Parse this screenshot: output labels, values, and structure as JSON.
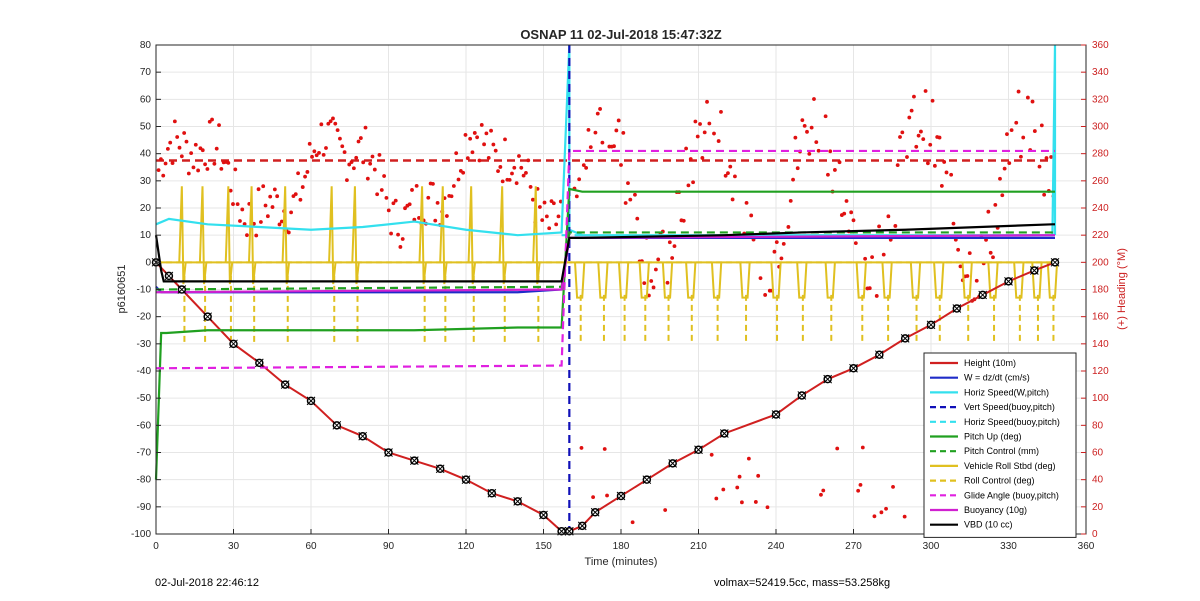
{
  "chart_data": {
    "type": "line",
    "title": "OSNAP 11 02-Jul-2018 15:47:32Z",
    "xlabel": "Time (minutes)",
    "ylabel": "p6160651",
    "ylabel_right": "(+) Heading (°M)",
    "xlim": [
      0,
      360
    ],
    "ylim": [
      -100,
      80
    ],
    "ylim_right": [
      0,
      360
    ],
    "x_ticks": [
      "0",
      "30",
      "60",
      "90",
      "120",
      "150",
      "180",
      "210",
      "240",
      "270",
      "300",
      "330",
      "360"
    ],
    "y_ticks": [
      "80",
      "70",
      "60",
      "50",
      "40",
      "30",
      "20",
      "10",
      "0",
      "-10",
      "-20",
      "-30",
      "-40",
      "-50",
      "-60",
      "-70",
      "-80",
      "-90",
      "-100"
    ],
    "y_ticks_right": [
      "360",
      "340",
      "320",
      "300",
      "280",
      "260",
      "240",
      "220",
      "200",
      "180",
      "160",
      "140",
      "120",
      "100",
      "80",
      "60",
      "40",
      "20",
      "0"
    ],
    "grid": true,
    "legend_position": "bottom-right",
    "series": [
      {
        "name": "Height (10m)",
        "color": "#d02020",
        "style": "solid",
        "x": [
          0,
          5,
          10,
          20,
          30,
          40,
          50,
          60,
          70,
          80,
          90,
          100,
          110,
          120,
          130,
          140,
          150,
          157,
          160,
          165,
          170,
          180,
          190,
          200,
          210,
          220,
          240,
          250,
          260,
          270,
          280,
          290,
          300,
          310,
          320,
          330,
          340,
          348
        ],
        "y": [
          0,
          -5,
          -10,
          -20,
          -30,
          -37,
          -45,
          -51,
          -60,
          -64,
          -70,
          -73,
          -76,
          -80,
          -85,
          -88,
          -93,
          -99,
          -99,
          -97,
          -92,
          -86,
          -80,
          -74,
          -69,
          -63,
          -56,
          -49,
          -43,
          -39,
          -34,
          -28,
          -23,
          -17,
          -12,
          -7,
          -3,
          0
        ]
      },
      {
        "name": "W = dz/dt (cm/s)",
        "color": "#1f2cc8",
        "style": "solid",
        "x": [
          0,
          2,
          20,
          60,
          100,
          140,
          157,
          160,
          165,
          180,
          240,
          300,
          348
        ],
        "y": [
          -9,
          -11,
          -11,
          -11,
          -11,
          -11,
          -10,
          9,
          9,
          9,
          9,
          9,
          9
        ]
      },
      {
        "name": "Horiz Speed(W,pitch)",
        "color": "#33e0ee",
        "style": "solid",
        "x": [
          0,
          5,
          20,
          40,
          60,
          80,
          100,
          120,
          140,
          157,
          160,
          160,
          165,
          200,
          260,
          320,
          347,
          348,
          348
        ],
        "y": [
          14,
          16,
          14,
          13,
          12,
          13,
          15,
          12,
          10,
          11,
          80,
          12,
          10,
          10,
          10,
          10,
          10,
          80,
          10
        ]
      },
      {
        "name": "Vert Speed(buoy,pitch)",
        "color": "#1010b8",
        "style": "dashed",
        "x": [
          160,
          160
        ],
        "y": [
          80,
          -100
        ]
      },
      {
        "name": "Horiz Speed(buoy,pitch)",
        "color": "#33e0ee",
        "style": "dashed",
        "x": [
          157,
          165
        ],
        "y": [
          10,
          10
        ]
      },
      {
        "name": "Pitch Up (deg)",
        "color": "#20a020",
        "style": "solid",
        "x": [
          0,
          2,
          4,
          20,
          60,
          100,
          140,
          157,
          160,
          165,
          200,
          260,
          320,
          348
        ],
        "y": [
          -80,
          -26,
          -26,
          -25,
          -25,
          -25,
          -24,
          -24,
          27,
          26,
          26,
          26,
          26,
          26
        ]
      },
      {
        "name": "Pitch Control (mm)",
        "color": "#20a020",
        "style": "dashed",
        "x": [
          0,
          157,
          160,
          348
        ],
        "y": [
          -10,
          -9,
          11,
          11
        ]
      },
      {
        "name": "Vehicle Roll Stbd (deg)",
        "color": "#e0c020",
        "style": "solid",
        "x": [
          0,
          30,
          60,
          90,
          120,
          150,
          160,
          180,
          210,
          240,
          270,
          300,
          330,
          348
        ],
        "y": [
          0,
          0,
          0,
          0,
          0,
          0,
          0,
          0,
          0,
          0,
          0,
          0,
          0,
          0
        ]
      },
      {
        "name": "Roll Control (deg)",
        "color": "#e0c020",
        "style": "dashed",
        "x": [
          0,
          348
        ],
        "y": [
          0,
          0
        ]
      },
      {
        "name": "Glide Angle (buoy,pitch)",
        "color": "#e020e0",
        "style": "dashed",
        "x": [
          0,
          157,
          160,
          348
        ],
        "y": [
          -39,
          -38,
          41,
          41
        ]
      },
      {
        "name": "Buoyancy (10g)",
        "color": "#d020d0",
        "style": "solid",
        "x": [
          0,
          157,
          160,
          348
        ],
        "y": [
          -11,
          -10,
          9,
          10
        ]
      },
      {
        "name": "VBD (10 cc)",
        "color": "#000000",
        "style": "solid",
        "x": [
          0,
          2,
          3,
          157,
          160,
          165,
          220,
          250,
          290,
          347,
          348
        ],
        "y": [
          10,
          -3,
          -7,
          -7,
          9,
          9,
          10,
          11,
          12,
          14,
          14
        ]
      }
    ],
    "heading_reference": {
      "value": 275,
      "color": "#d02020",
      "style": "dashed"
    },
    "heading_scatter_color": "#e01010"
  },
  "footer": {
    "left": "02-Jul-2018 22:46:12",
    "right": "volmax=52419.5cc, mass=53.258kg"
  }
}
